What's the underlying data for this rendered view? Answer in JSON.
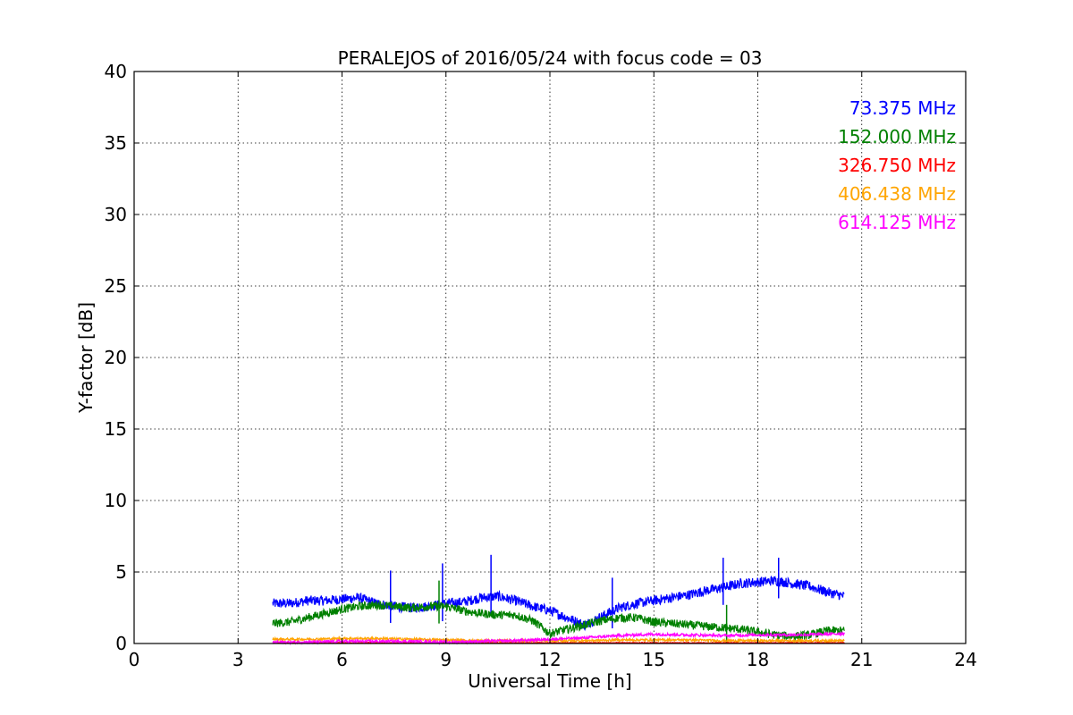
{
  "chart_data": {
    "type": "line",
    "title": "PERALEJOS of 2016/05/24 with focus code = 03",
    "xlabel": "Universal Time [h]",
    "ylabel": "Y-factor [dB]",
    "xlim": [
      0,
      24
    ],
    "ylim": [
      0,
      40
    ],
    "xticks": [
      0,
      3,
      6,
      9,
      12,
      15,
      18,
      21,
      24
    ],
    "yticks": [
      0,
      5,
      10,
      15,
      20,
      25,
      30,
      35,
      40
    ],
    "grid": true,
    "legend_position": "top-right",
    "series": [
      {
        "name": "73.375 MHz",
        "color": "#0000ff",
        "x": [
          4.0,
          4.5,
          5.0,
          5.5,
          6.0,
          6.5,
          7.0,
          7.5,
          8.0,
          8.5,
          9.0,
          9.5,
          10.0,
          10.5,
          11.0,
          11.5,
          12.0,
          12.5,
          13.0,
          13.5,
          14.0,
          14.5,
          15.0,
          15.5,
          16.0,
          16.5,
          17.0,
          17.5,
          18.0,
          18.5,
          19.0,
          19.5,
          20.0,
          20.5
        ],
        "y": [
          2.8,
          2.8,
          3.0,
          3.0,
          3.1,
          3.2,
          2.8,
          2.6,
          2.5,
          2.6,
          2.8,
          2.9,
          3.2,
          3.3,
          3.0,
          2.6,
          2.3,
          1.8,
          1.3,
          1.9,
          2.5,
          2.8,
          3.0,
          3.2,
          3.4,
          3.7,
          3.9,
          4.2,
          4.3,
          4.4,
          4.2,
          4.0,
          3.6,
          3.3
        ],
        "spikes": [
          [
            7.4,
            5.1
          ],
          [
            8.9,
            5.6
          ],
          [
            10.3,
            6.2
          ],
          [
            13.8,
            4.6
          ],
          [
            17.0,
            6.0
          ],
          [
            18.6,
            6.0
          ]
        ]
      },
      {
        "name": "152.000 MHz",
        "color": "#008000",
        "x": [
          4.0,
          4.5,
          5.0,
          5.5,
          6.0,
          6.5,
          7.0,
          7.5,
          8.0,
          8.5,
          9.0,
          9.5,
          10.0,
          10.5,
          11.0,
          11.5,
          12.0,
          12.5,
          13.0,
          13.5,
          14.0,
          14.5,
          15.0,
          15.5,
          16.0,
          16.5,
          17.0,
          17.5,
          18.0,
          18.5,
          19.0,
          19.5,
          20.0,
          20.5
        ],
        "y": [
          1.4,
          1.5,
          1.8,
          2.1,
          2.4,
          2.6,
          2.7,
          2.6,
          2.5,
          2.6,
          2.6,
          2.3,
          2.1,
          2.0,
          2.0,
          1.6,
          0.7,
          1.0,
          1.3,
          1.6,
          1.8,
          1.8,
          1.5,
          1.4,
          1.3,
          1.2,
          1.1,
          1.0,
          0.8,
          0.6,
          0.5,
          0.6,
          0.9,
          0.9
        ],
        "spikes": [
          [
            8.8,
            4.4
          ],
          [
            17.1,
            2.7
          ]
        ]
      },
      {
        "name": "326.750 MHz",
        "color": "#ff0000",
        "x": [
          4.0,
          6.0,
          8.0,
          10.0,
          12.0,
          14.0,
          16.0,
          18.0,
          20.0,
          20.5
        ],
        "y": [
          0.05,
          0.05,
          0.05,
          0.05,
          0.05,
          0.05,
          0.05,
          0.05,
          0.05,
          0.05
        ],
        "spikes": []
      },
      {
        "name": "406.438 MHz",
        "color": "#ffa500",
        "x": [
          4.0,
          5.0,
          6.0,
          7.0,
          8.0,
          9.0,
          10.0,
          11.0,
          12.0,
          13.0,
          14.0,
          15.0,
          16.0,
          17.0,
          18.0,
          19.0,
          20.0,
          20.5
        ],
        "y": [
          0.3,
          0.3,
          0.35,
          0.35,
          0.3,
          0.25,
          0.2,
          0.2,
          0.2,
          0.2,
          0.25,
          0.25,
          0.25,
          0.2,
          0.2,
          0.2,
          0.2,
          0.2
        ],
        "spikes": []
      },
      {
        "name": "614.125 MHz",
        "color": "#ff00ff",
        "x": [
          4.0,
          5.0,
          6.0,
          7.0,
          8.0,
          9.0,
          10.0,
          11.0,
          12.0,
          13.0,
          14.0,
          15.0,
          16.0,
          17.0,
          18.0,
          19.0,
          20.0,
          20.5
        ],
        "y": [
          0.1,
          0.1,
          0.15,
          0.15,
          0.15,
          0.1,
          0.15,
          0.2,
          0.3,
          0.4,
          0.55,
          0.65,
          0.6,
          0.55,
          0.6,
          0.6,
          0.65,
          0.7
        ],
        "spikes": []
      }
    ]
  }
}
